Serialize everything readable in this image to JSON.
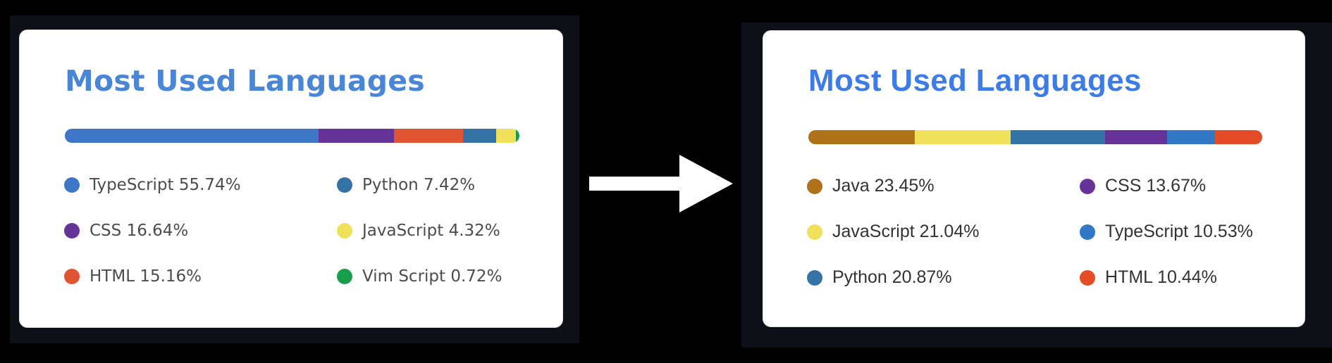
{
  "left_card": {
    "title": "Most Used Languages",
    "title_color": "#4a86d6",
    "languages": [
      {
        "name": "TypeScript",
        "percent": 55.74,
        "label": "TypeScript 55.74%",
        "color": "#3f77c8"
      },
      {
        "name": "CSS",
        "percent": 16.64,
        "label": "CSS 16.64%",
        "color": "#663399"
      },
      {
        "name": "HTML",
        "percent": 15.16,
        "label": "HTML 15.16%",
        "color": "#e05431"
      },
      {
        "name": "Python",
        "percent": 7.42,
        "label": "Python 7.42%",
        "color": "#3572a5"
      },
      {
        "name": "JavaScript",
        "percent": 4.32,
        "label": "JavaScript 4.32%",
        "color": "#f1e05a"
      },
      {
        "name": "Vim Script",
        "percent": 0.72,
        "label": "Vim Script 0.72%",
        "color": "#199f4b"
      }
    ]
  },
  "right_card": {
    "title": "Most Used Languages",
    "title_color": "#3d7ce6",
    "languages": [
      {
        "name": "Java",
        "percent": 23.45,
        "label": "Java 23.45%",
        "color": "#b07219"
      },
      {
        "name": "JavaScript",
        "percent": 21.04,
        "label": "JavaScript 21.04%",
        "color": "#f1e05a"
      },
      {
        "name": "Python",
        "percent": 20.87,
        "label": "Python 20.87%",
        "color": "#3572a5"
      },
      {
        "name": "CSS",
        "percent": 13.67,
        "label": "CSS 13.67%",
        "color": "#663399"
      },
      {
        "name": "TypeScript",
        "percent": 10.53,
        "label": "TypeScript 10.53%",
        "color": "#3178c6"
      },
      {
        "name": "HTML",
        "percent": 10.44,
        "label": "HTML 10.44%",
        "color": "#e34c26"
      }
    ]
  },
  "arrow": {
    "icon": "right-arrow-icon",
    "color": "#ffffff"
  }
}
